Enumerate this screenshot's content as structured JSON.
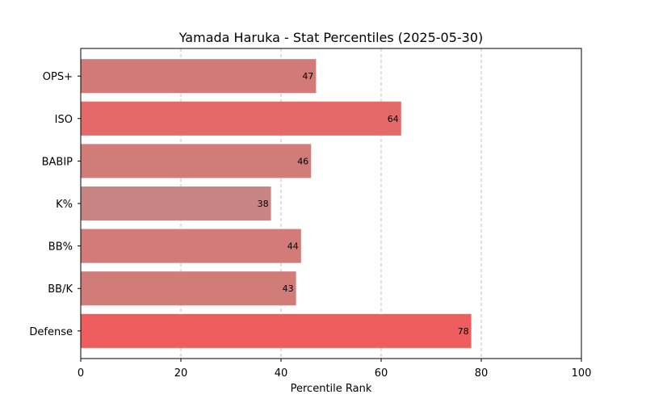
{
  "chart_data": {
    "type": "bar",
    "orientation": "horizontal",
    "title": "Yamada Haruka - Stat Percentiles (2025-05-30)",
    "xlabel": "Percentile Rank",
    "ylabel": "",
    "xlim": [
      0,
      100
    ],
    "xticks": [
      0,
      20,
      40,
      60,
      80,
      100
    ],
    "grid": "x-axis dashed",
    "legend": "none",
    "categories": [
      "OPS+",
      "ISO",
      "BABIP",
      "K%",
      "BB%",
      "BB/K",
      "Defense"
    ],
    "values": [
      47,
      64,
      46,
      38,
      44,
      43,
      78
    ],
    "bar_colors": [
      "#d27a78",
      "#e46a69",
      "#d27c7a",
      "#c88482",
      "#d37b78",
      "#d27c7a",
      "#ee5e5f"
    ]
  }
}
